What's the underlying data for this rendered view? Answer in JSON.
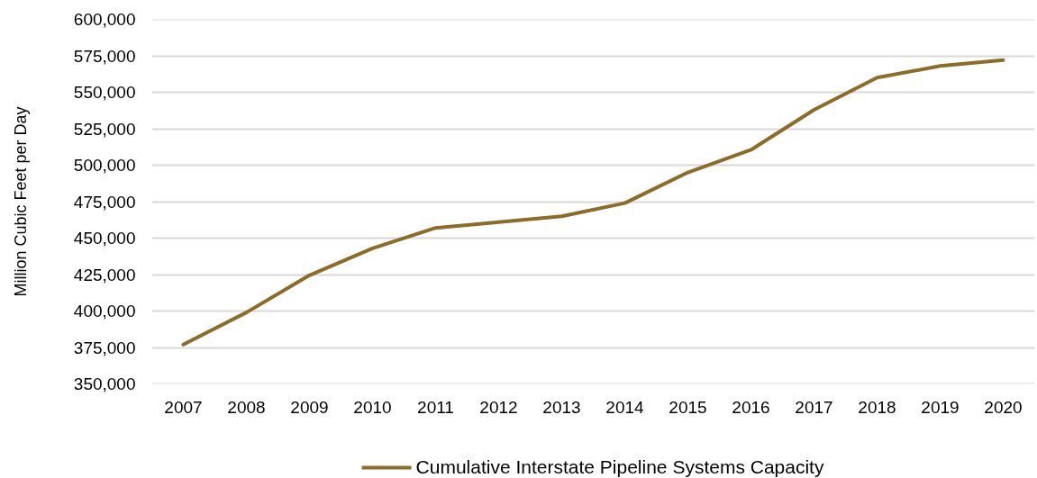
{
  "chart_data": {
    "type": "line",
    "ylabel": "Million Cubic Feet per Day",
    "categories": [
      "2007",
      "2008",
      "2009",
      "2010",
      "2011",
      "2012",
      "2013",
      "2014",
      "2015",
      "2016",
      "2017",
      "2018",
      "2019",
      "2020"
    ],
    "series": [
      {
        "name": "Cumulative Interstate Pipeline Systems Capacity",
        "color": "#8c6d28",
        "values": [
          377000,
          399000,
          424500,
          443000,
          457000,
          461000,
          465000,
          474000,
          495000,
          510500,
          538000,
          560000,
          568000,
          572000
        ]
      }
    ],
    "ylim": [
      350000,
      600000
    ],
    "yticks": [
      {
        "value": 350000,
        "label": "350,000"
      },
      {
        "value": 375000,
        "label": "375,000"
      },
      {
        "value": 400000,
        "label": "400,000"
      },
      {
        "value": 425000,
        "label": "425,000"
      },
      {
        "value": 450000,
        "label": "450,000"
      },
      {
        "value": 475000,
        "label": "475,000"
      },
      {
        "value": 500000,
        "label": "500,000"
      },
      {
        "value": 525000,
        "label": "525,000"
      },
      {
        "value": 550000,
        "label": "550,000"
      },
      {
        "value": 575000,
        "label": "575,000"
      },
      {
        "value": 600000,
        "label": "600,000"
      }
    ],
    "grid": "y",
    "legend": "bottom",
    "line_style": "solid"
  }
}
